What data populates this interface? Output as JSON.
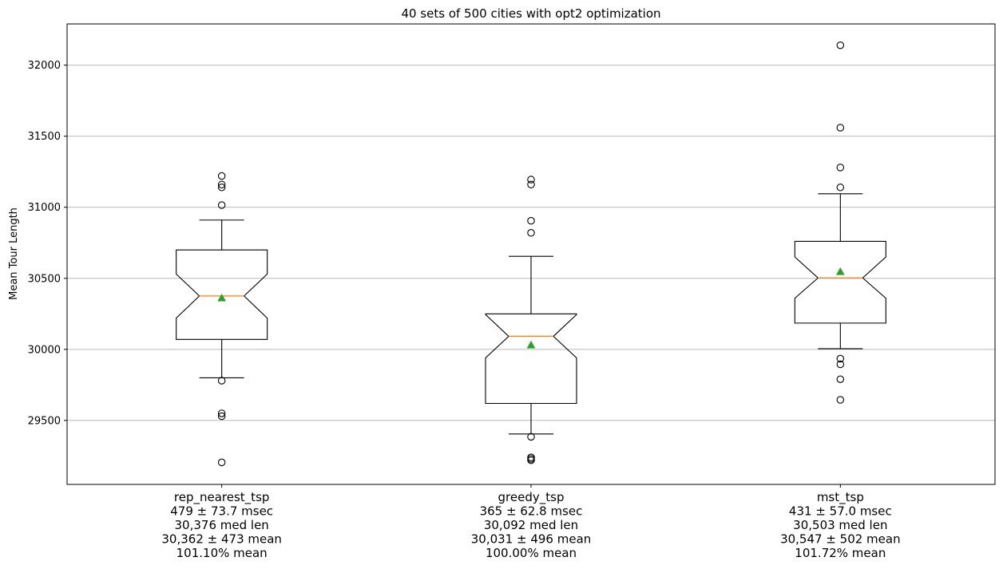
{
  "chart_data": {
    "type": "box",
    "title": "40 sets of 500 cities with opt2 optimization",
    "xlabel": "",
    "ylabel": "Mean Tour Length",
    "ylim": [
      29050,
      32290
    ],
    "yticks": [
      29500,
      30000,
      30500,
      31000,
      31500,
      32000
    ],
    "grid": "y",
    "notched": true,
    "show_means": true,
    "colors": {
      "box": "#000000",
      "median": "#ff7f0e",
      "mean": "#2ca02c",
      "grid": "#b0b0b0"
    },
    "categories": [
      {
        "name": "rep_nearest_tsp",
        "label_lines": [
          "rep_nearest_tsp",
          "479 ± 73.7 msec",
          "30,376 med len",
          "30,362 ± 473 mean",
          "101.10% mean"
        ],
        "whisker_low": 29800,
        "q1": 30070,
        "median": 30376,
        "q3": 30700,
        "whisker_high": 30910,
        "notch_low": 30220,
        "notch_high": 30530,
        "mean": 30362,
        "outliers": [
          29780,
          29550,
          29530,
          29205,
          31015,
          31140,
          31160,
          31220
        ]
      },
      {
        "name": "greedy_tsp",
        "label_lines": [
          "greedy_tsp",
          "365 ± 62.8 msec",
          "30,092 med len",
          "30,031 ± 496 mean",
          "100.00% mean"
        ],
        "whisker_low": 29405,
        "q1": 29620,
        "median": 30092,
        "q3": 30250,
        "whisker_high": 30655,
        "notch_low": 29940,
        "notch_high": 30245,
        "mean": 30031,
        "outliers": [
          29385,
          29240,
          29230,
          29220,
          30820,
          30905,
          31160,
          31195
        ]
      },
      {
        "name": "mst_tsp",
        "label_lines": [
          "mst_tsp",
          "431 ± 57.0 msec",
          "30,503 med len",
          "30,547 ± 502 mean",
          "101.72% mean"
        ],
        "whisker_low": 30005,
        "q1": 30185,
        "median": 30503,
        "q3": 30760,
        "whisker_high": 31095,
        "notch_low": 30360,
        "notch_high": 30650,
        "mean": 30547,
        "outliers": [
          29935,
          29895,
          29790,
          29645,
          31140,
          31280,
          31560,
          32140
        ]
      }
    ]
  }
}
